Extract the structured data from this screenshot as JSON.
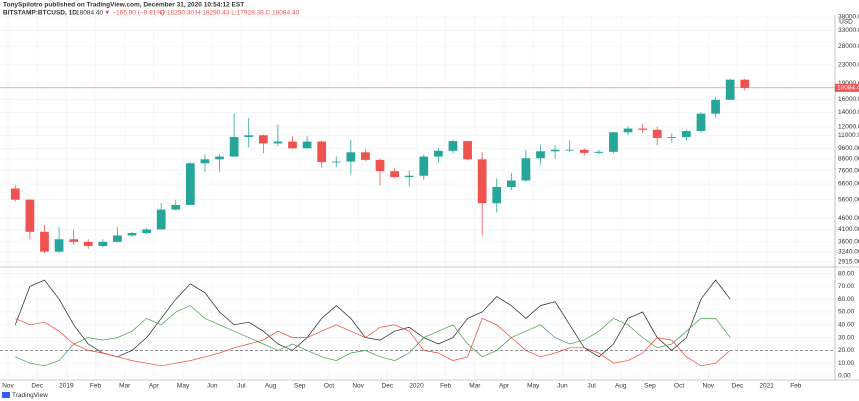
{
  "header": {
    "author_line": "TonySpilotro published on TradingView.com, December 31, 2020 10:54:12 EST",
    "symbol": "BITSTAMP:BTCUSD, 1D",
    "last": "18084.40",
    "change": "▼ −165.90 (−0.91%)",
    "ohlc": "O:18250.30 H:18290.43 L:17928.38 C:18084.40"
  },
  "footer": "TradingView",
  "chart_data": [
    {
      "type": "candlestick",
      "axis_unit": "USD",
      "log_scale": true,
      "up_color": "#26a69a",
      "down_color": "#ef5350",
      "open": [
        6300,
        5600,
        4000,
        3250,
        3700,
        3600,
        3450,
        3600,
        3850,
        3950,
        4100,
        5050,
        5300,
        8200,
        8550,
        8800,
        10800,
        11000,
        10100,
        10300,
        9600,
        10300,
        8300,
        8350,
        9200,
        8500,
        7550,
        7100,
        7200,
        8800,
        9350,
        10350,
        8550,
        5400,
        6400,
        6850,
        8650,
        9300,
        9450,
        9450,
        9150,
        9250,
        11350,
        11800,
        11650,
        10700,
        10800,
        11500,
        13800,
        15950,
        19700,
        null,
        null,
        null,
        null,
        null
      ],
      "high": [
        6500,
        5650,
        4300,
        4200,
        4100,
        3700,
        3700,
        4200,
        4000,
        4150,
        5400,
        5600,
        8300,
        9000,
        9000,
        13800,
        13200,
        11100,
        12300,
        10900,
        10900,
        10400,
        8800,
        10500,
        9500,
        8600,
        7800,
        7600,
        9000,
        9600,
        10500,
        10300,
        9200,
        7000,
        7400,
        9450,
        10000,
        9900,
        10400,
        9600,
        9450,
        11400,
        12100,
        12400,
        12050,
        11200,
        11700,
        14000,
        16400,
        19900,
        19900,
        null,
        null,
        null,
        null,
        null
      ],
      "low": [
        5500,
        3700,
        3200,
        3200,
        3500,
        3350,
        3400,
        3600,
        3800,
        3900,
        4100,
        5000,
        5300,
        7500,
        7500,
        8800,
        9700,
        9100,
        9800,
        9500,
        9600,
        7800,
        7900,
        7300,
        8400,
        6500,
        7000,
        6450,
        6900,
        8250,
        9100,
        8450,
        3850,
        4900,
        6200,
        6750,
        8100,
        8600,
        9250,
        8900,
        9000,
        9100,
        11000,
        11250,
        9900,
        10200,
        10400,
        11300,
        13300,
        16200,
        17600,
        null,
        null,
        null,
        null,
        null
      ],
      "close": [
        5600,
        4000,
        3250,
        3700,
        3600,
        3450,
        3600,
        3850,
        3950,
        4100,
        5050,
        5300,
        8200,
        8550,
        8800,
        10800,
        11000,
        10100,
        10300,
        9600,
        10300,
        8300,
        8350,
        9200,
        8500,
        7550,
        7100,
        7200,
        8800,
        9350,
        10350,
        8550,
        5400,
        6400,
        6850,
        8650,
        9300,
        9450,
        9450,
        9150,
        9250,
        11350,
        11800,
        11650,
        10700,
        10800,
        11500,
        13800,
        15950,
        19700,
        18084.4,
        null,
        null,
        null,
        null,
        null
      ],
      "last_label": "18084.40",
      "ylim": [
        2825,
        38800
      ],
      "yticks": [
        {
          "value": 38000,
          "label": "38000.00"
        },
        {
          "value": 33000,
          "label": "33000.00"
        },
        {
          "value": 28000,
          "label": "28000.00"
        },
        {
          "value": 23000,
          "label": "23000.00"
        },
        {
          "value": 19000,
          "label": "19000.00"
        },
        {
          "value": 16000,
          "label": "16000.00"
        },
        {
          "value": 14000,
          "label": "14000.00"
        },
        {
          "value": 12000,
          "label": "12000.00"
        },
        {
          "value": 11000,
          "label": "11000.00"
        },
        {
          "value": 9600,
          "label": "9600.00"
        },
        {
          "value": 8600,
          "label": "8600.00"
        },
        {
          "value": 7600,
          "label": "7600.00"
        },
        {
          "value": 6600,
          "label": "6600.00"
        },
        {
          "value": 5600,
          "label": "5600.00"
        },
        {
          "value": 4600,
          "label": "4600.00"
        },
        {
          "value": 4100,
          "label": "4100.00"
        },
        {
          "value": 3600,
          "label": "3600.00"
        },
        {
          "value": 3240,
          "label": "3240.00"
        },
        {
          "value": 2915,
          "label": "2915.00"
        }
      ],
      "grid": true
    },
    {
      "type": "line",
      "grid": true,
      "reference_line": 20,
      "categories": [
        "Nov",
        null,
        "Dec",
        null,
        "2019",
        null,
        "Feb",
        null,
        "Mar",
        null,
        "Apr",
        null,
        "May",
        null,
        "Jun",
        null,
        "Jul",
        null,
        "Aug",
        null,
        "Sep",
        null,
        "Oct",
        null,
        "Nov",
        null,
        "Dec",
        null,
        "2020",
        null,
        "Feb",
        null,
        "Mar",
        null,
        "Apr",
        null,
        "May",
        null,
        "Jun",
        null,
        "Jul",
        null,
        "Aug",
        null,
        "Sep",
        null,
        "Oct",
        null,
        "Nov",
        null,
        "Dec",
        null,
        "2021",
        null,
        "Feb",
        null
      ],
      "series": [
        {
          "color": "#222222",
          "values": [
            40,
            70,
            75,
            60,
            40,
            25,
            18,
            15,
            20,
            30,
            45,
            60,
            72,
            65,
            50,
            40,
            42,
            35,
            25,
            20,
            30,
            45,
            55,
            45,
            30,
            28,
            35,
            38,
            30,
            25,
            30,
            45,
            50,
            62,
            55,
            45,
            55,
            58,
            40,
            22,
            15,
            25,
            45,
            50,
            30,
            20,
            30,
            60,
            75,
            60,
            null,
            null,
            null,
            null,
            null,
            null
          ]
        },
        {
          "color": "#43a047",
          "values": [
            15,
            10,
            8,
            12,
            25,
            30,
            28,
            30,
            35,
            45,
            40,
            50,
            55,
            45,
            40,
            35,
            30,
            25,
            20,
            25,
            20,
            15,
            12,
            18,
            20,
            15,
            12,
            18,
            30,
            35,
            40,
            25,
            15,
            20,
            30,
            35,
            40,
            30,
            25,
            28,
            35,
            45,
            40,
            30,
            22,
            25,
            35,
            45,
            45,
            30,
            null,
            null,
            null,
            null,
            null,
            null
          ]
        },
        {
          "color": "#f44336",
          "values": [
            45,
            40,
            42,
            35,
            25,
            20,
            18,
            15,
            12,
            10,
            8,
            10,
            12,
            15,
            18,
            22,
            25,
            28,
            35,
            30,
            30,
            35,
            40,
            35,
            30,
            38,
            40,
            35,
            20,
            18,
            12,
            15,
            45,
            40,
            30,
            20,
            15,
            18,
            22,
            22,
            18,
            10,
            12,
            18,
            30,
            28,
            15,
            8,
            10,
            20,
            null,
            null,
            null,
            null,
            null,
            null
          ]
        }
      ],
      "ylim": [
        0,
        82
      ],
      "yticks": [
        {
          "value": 80,
          "label": "80.00"
        },
        {
          "value": 70,
          "label": "70.00"
        },
        {
          "value": 60,
          "label": "60.00"
        },
        {
          "value": 50,
          "label": "50.00"
        },
        {
          "value": 40,
          "label": "40.00"
        },
        {
          "value": 30,
          "label": "30.00"
        },
        {
          "value": 20,
          "label": "20.00"
        },
        {
          "value": 10,
          "label": "10.00"
        },
        {
          "value": 0,
          "label": "0.00"
        }
      ]
    }
  ]
}
